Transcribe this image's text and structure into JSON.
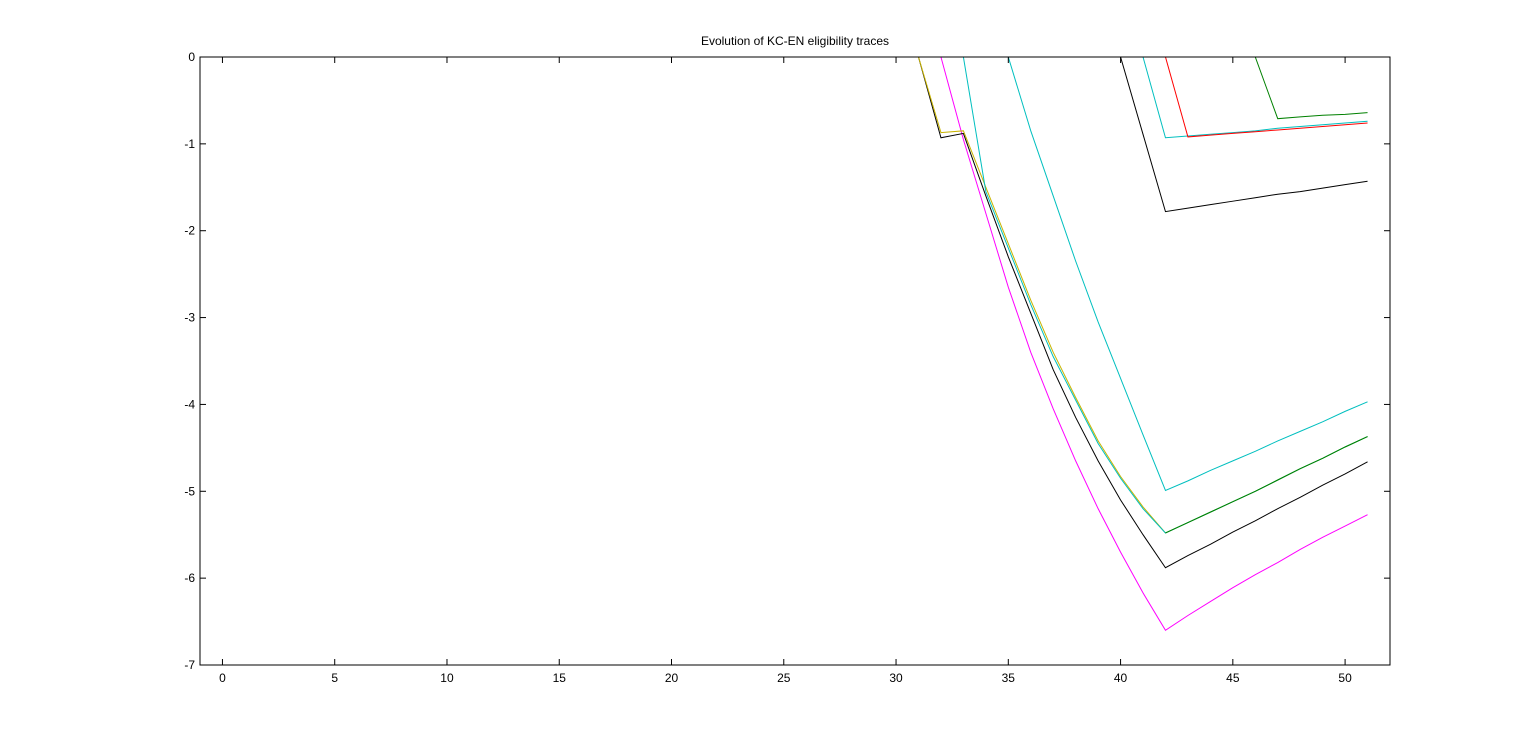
{
  "chart_data": {
    "type": "line",
    "title": "Evolution of KC-EN eligibility traces",
    "x": [
      0,
      30,
      31,
      32,
      33,
      34,
      35,
      36,
      37,
      38,
      39,
      40,
      41,
      42,
      43,
      44,
      45,
      46,
      47,
      48,
      49,
      50,
      51
    ],
    "xlim": [
      -1,
      52
    ],
    "ylim": [
      -7,
      0
    ],
    "xticks": [
      0,
      5,
      10,
      15,
      20,
      25,
      30,
      35,
      40,
      45,
      50
    ],
    "yticks": [
      -7,
      -6,
      -5,
      -4,
      -3,
      -2,
      -1,
      0
    ],
    "series": [
      {
        "color": "#ff00ff",
        "values": [
          0,
          0,
          0,
          0,
          -0.95,
          -1.8,
          -2.65,
          -3.4,
          -4.05,
          -4.65,
          -5.2,
          -5.7,
          -6.17,
          -6.6,
          -6.43,
          -6.27,
          -6.11,
          -5.96,
          -5.82,
          -5.67,
          -5.53,
          -5.4,
          -5.27
        ]
      },
      {
        "color": "#000000",
        "values": [
          0,
          0,
          0,
          -0.93,
          -0.88,
          -1.6,
          -2.3,
          -2.95,
          -3.6,
          -4.15,
          -4.65,
          -5.1,
          -5.5,
          -5.88,
          -5.74,
          -5.61,
          -5.47,
          -5.34,
          -5.2,
          -5.07,
          -4.93,
          -4.8,
          -4.66
        ]
      },
      {
        "color": "#c8b400",
        "values": [
          0,
          0,
          0,
          -0.87,
          -0.85,
          -1.5,
          -2.15,
          -2.8,
          -3.4,
          -3.92,
          -4.42,
          -4.83,
          -5.18,
          -5.48,
          -5.36,
          -5.24,
          -5.12,
          -5.0,
          -4.87,
          -4.74,
          -4.62,
          -4.49,
          -4.37
        ]
      },
      {
        "color": "#00bfbf",
        "values": [
          0,
          0,
          0,
          0,
          0,
          -1.55,
          -2.2,
          -2.85,
          -3.45,
          -3.95,
          -4.45,
          -4.85,
          -5.2,
          -5.48,
          -5.36,
          -5.24,
          -5.12,
          -5.0,
          -4.87,
          -4.74,
          -4.62,
          -4.49,
          -4.37
        ]
      },
      {
        "color": "#008000",
        "values": [
          null,
          null,
          null,
          null,
          null,
          null,
          null,
          null,
          null,
          null,
          null,
          null,
          null,
          -5.48,
          -5.36,
          -5.24,
          -5.12,
          -5.0,
          -4.87,
          -4.74,
          -4.62,
          -4.49,
          -4.37
        ]
      },
      {
        "color": "#00bfbf",
        "values": [
          0,
          0,
          0,
          0,
          0,
          0,
          0,
          -0.85,
          -1.6,
          -2.35,
          -3.05,
          -3.7,
          -4.35,
          -4.99,
          -4.88,
          -4.76,
          -4.65,
          -4.54,
          -4.42,
          -4.31,
          -4.2,
          -4.08,
          -3.97
        ]
      },
      {
        "color": "#000000",
        "values": [
          0,
          0,
          0,
          0,
          0,
          0,
          0,
          0,
          0,
          0,
          0,
          0,
          -0.89,
          -1.78,
          -1.74,
          -1.7,
          -1.66,
          -1.62,
          -1.58,
          -1.55,
          -1.51,
          -1.47,
          -1.43
        ]
      },
      {
        "color": "#00bfbf",
        "values": [
          0,
          0,
          0,
          0,
          0,
          0,
          0,
          0,
          0,
          0,
          0,
          0,
          0,
          -0.93,
          -0.91,
          -0.89,
          -0.87,
          -0.85,
          -0.82,
          -0.8,
          -0.78,
          -0.76,
          -0.74
        ]
      },
      {
        "color": "#ff0000",
        "values": [
          0,
          0,
          0,
          0,
          0,
          0,
          0,
          0,
          0,
          0,
          0,
          0,
          0,
          0,
          -0.92,
          -0.9,
          -0.88,
          -0.86,
          -0.84,
          -0.82,
          -0.8,
          -0.78,
          -0.76
        ]
      },
      {
        "color": "#008000",
        "values": [
          0,
          0,
          0,
          0,
          0,
          0,
          0,
          0,
          0,
          0,
          0,
          0,
          0,
          0,
          0,
          0,
          0,
          0,
          -0.71,
          -0.69,
          -0.67,
          -0.66,
          -0.64
        ]
      }
    ]
  }
}
